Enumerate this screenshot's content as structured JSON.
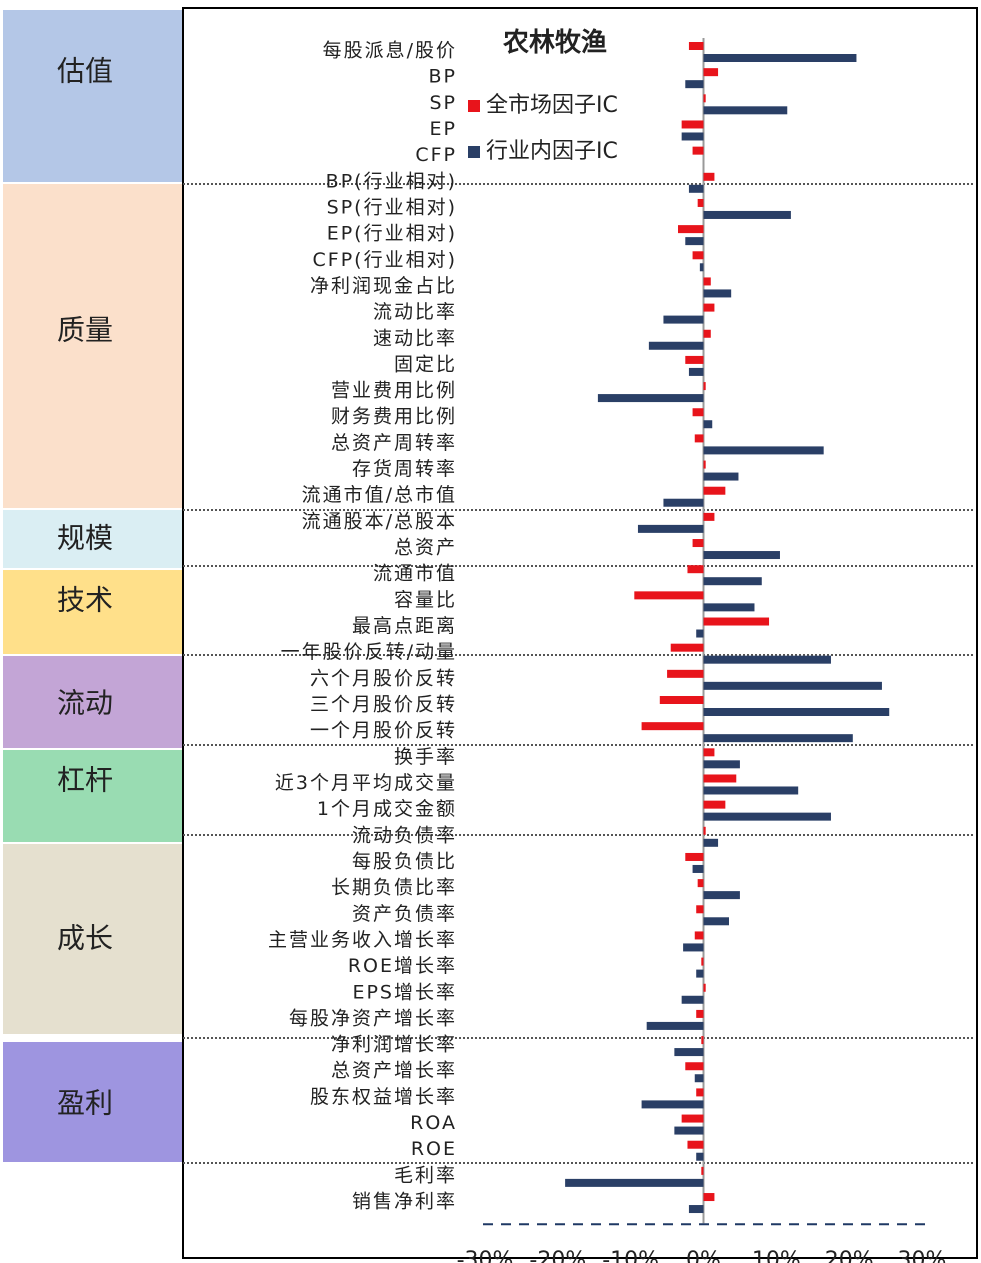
{
  "chart_data": {
    "type": "bar",
    "orientation": "horizontal",
    "title": "农林牧渔",
    "groups": [
      "估值",
      "质量",
      "规模",
      "技术",
      "流动",
      "杠杆",
      "成长",
      "盈利"
    ],
    "categories": [
      "每股派息/股价",
      "BP",
      "SP",
      "EP",
      "CFP",
      "BP(行业相对)",
      "SP(行业相对)",
      "EP(行业相对)",
      "CFP(行业相对)",
      "净利润现金占比",
      "流动比率",
      "速动比率",
      "固定比",
      "营业费用比例",
      "财务费用比例",
      "总资产周转率",
      "存货周转率",
      "流通市值/总市值",
      "流通股本/总股本",
      "总资产",
      "流通市值",
      "容量比",
      "最高点距离",
      "一年股价反转/动量",
      "六个月股价反转",
      "三个月股价反转",
      "一个月股价反转",
      "换手率",
      "近3个月平均成交量",
      "1个月成交金额",
      "流动负债率",
      "每股负债比",
      "长期负债比率",
      "资产负债率",
      "主营业务收入增长率",
      "ROE增长率",
      "EPS增长率",
      "每股净资产增长率",
      "净利润增长率",
      "总资产增长率",
      "股东权益增长率",
      "ROA",
      "ROE",
      "毛利率",
      "销售净利率"
    ],
    "series": [
      {
        "name": "全市场因子IC",
        "color": "#e8141b",
        "values": [
          -2,
          2,
          0.3,
          -3,
          -1.5,
          1.5,
          -0.8,
          -3.5,
          -1.5,
          1,
          1.5,
          1,
          -2.5,
          0.3,
          -1.5,
          -1.2,
          0.3,
          3,
          1.5,
          -1.5,
          -2.2,
          -9.5,
          9,
          -4.5,
          -5,
          -6,
          -8.5,
          1.5,
          4.5,
          3,
          0.3,
          -2.5,
          -0.8,
          -1,
          -1.2,
          -0.3,
          0.3,
          -1,
          -0.3,
          -2.5,
          -1,
          -3,
          -2.2,
          -0.3,
          1.5
        ]
      },
      {
        "name": "行业内因子IC",
        "color": "#2a3f66",
        "values": [
          21,
          -2.5,
          11.5,
          -3,
          0,
          -2,
          12,
          -2.5,
          -0.5,
          3.8,
          -5.5,
          -7.5,
          -2,
          -14.5,
          1.2,
          16.5,
          4.8,
          -5.5,
          -9,
          10.5,
          8,
          7,
          -1,
          17.5,
          24.5,
          25.5,
          20.5,
          5,
          13,
          17.5,
          2,
          -1.5,
          5,
          3.5,
          -2.8,
          -1,
          -3,
          -7.8,
          -4,
          -1.2,
          -8.5,
          -4,
          -1,
          -19,
          -2
        ]
      }
    ],
    "xlim": [
      -30,
      30
    ],
    "xticks": [
      {
        "value": -30,
        "label": "-30%"
      },
      {
        "value": -20,
        "label": "-20%"
      },
      {
        "value": -10,
        "label": "-10%"
      },
      {
        "value": 0,
        "label": "0%"
      },
      {
        "value": 10,
        "label": "10%"
      },
      {
        "value": 20,
        "label": "20%"
      },
      {
        "value": 30,
        "label": "30%"
      }
    ]
  }
}
